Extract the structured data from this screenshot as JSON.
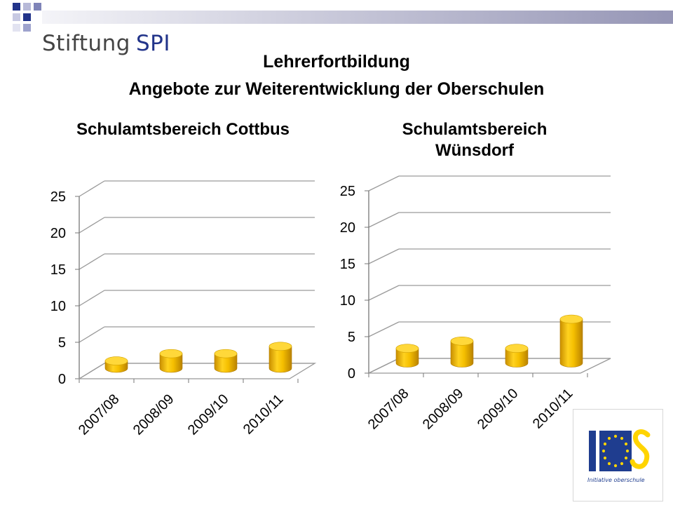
{
  "brand": {
    "text_a": "Stiftung",
    "text_b": "SPI"
  },
  "title": {
    "line1": "Lehrerfortbildung",
    "line2": "Angebote zur Weiterentwicklung der Oberschulen"
  },
  "colors": {
    "bar_main": "#f3bd00",
    "bar_top": "#ffd83a",
    "brand_blue": "#22348a",
    "eu_blue": "#1f3d8f",
    "eu_star": "#ffd400"
  },
  "chart_data": [
    {
      "type": "bar",
      "title": "Schulamtsbereich Cottbus",
      "categories": [
        "2007/08",
        "2008/09",
        "2009/10",
        "2010/11"
      ],
      "values": [
        1,
        2,
        2,
        3
      ],
      "ylim": [
        0,
        25
      ],
      "yticks": [
        "0",
        "5",
        "10",
        "15",
        "20",
        "25"
      ],
      "grid": true
    },
    {
      "type": "bar",
      "title": "Schulamtsbereich Wünsdorf",
      "categories": [
        "2007/08",
        "2008/09",
        "2009/10",
        "2010/11"
      ],
      "values": [
        2,
        3,
        2,
        6
      ],
      "ylim": [
        0,
        25
      ],
      "yticks": [
        "0",
        "5",
        "10",
        "15",
        "20",
        "25"
      ],
      "grid": true
    }
  ],
  "logo": {
    "caption": "Initiative oberschule"
  }
}
